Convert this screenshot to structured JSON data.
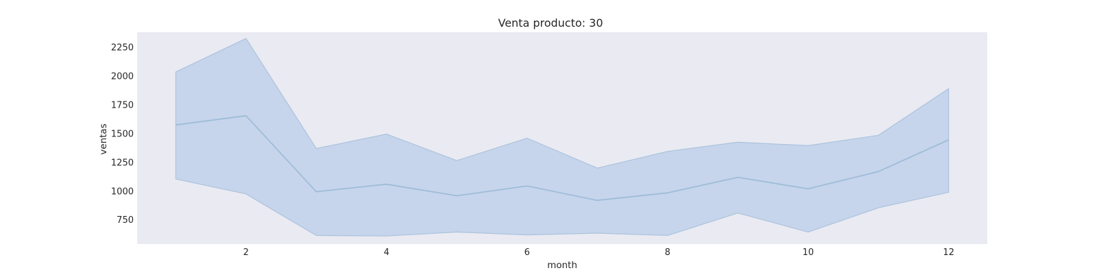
{
  "chart_data": {
    "type": "line",
    "title": "Venta producto: 30",
    "xlabel": "month",
    "ylabel": "ventas",
    "xlim": [
      0.45,
      12.55
    ],
    "ylim": [
      540,
      2380
    ],
    "xticks": [
      2,
      4,
      6,
      8,
      10,
      12
    ],
    "yticks": [
      750,
      1000,
      1250,
      1500,
      1750,
      2000,
      2250
    ],
    "grid": false,
    "legend": "none",
    "colors": {
      "plot_background": "#eaeaf2",
      "line": "#9fbcd8",
      "band_fill": "#aec7e8",
      "band_edge": "#aac3dc"
    },
    "series": [
      {
        "x": [
          1,
          2,
          3,
          4,
          5,
          6,
          7,
          8,
          9,
          10,
          11,
          12
        ],
        "values": [
          1575,
          1655,
          995,
          1060,
          960,
          1045,
          920,
          985,
          1120,
          1020,
          1170,
          1445
        ],
        "ci_upper": [
          2035,
          2325,
          1370,
          1495,
          1265,
          1460,
          1200,
          1345,
          1425,
          1395,
          1485,
          1890
        ],
        "ci_lower": [
          1105,
          975,
          615,
          610,
          645,
          620,
          635,
          615,
          810,
          645,
          855,
          990
        ]
      }
    ]
  }
}
